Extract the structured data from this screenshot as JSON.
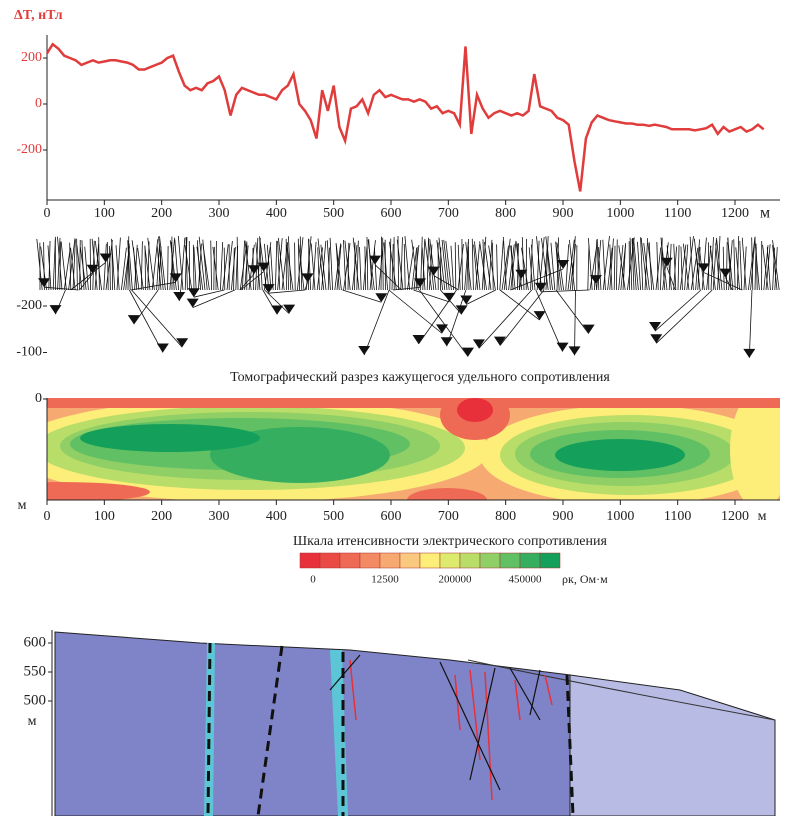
{
  "chart_data": [
    {
      "type": "line",
      "title": "ΔT, нТл",
      "x_unit": "м",
      "x": [
        0,
        10,
        20,
        30,
        40,
        50,
        60,
        70,
        80,
        90,
        100,
        110,
        120,
        130,
        140,
        150,
        160,
        170,
        180,
        190,
        200,
        210,
        220,
        230,
        240,
        250,
        260,
        270,
        280,
        290,
        300,
        310,
        320,
        330,
        340,
        350,
        360,
        370,
        380,
        390,
        400,
        410,
        420,
        430,
        440,
        450,
        460,
        470,
        480,
        490,
        500,
        510,
        520,
        530,
        540,
        550,
        560,
        570,
        580,
        590,
        600,
        610,
        620,
        630,
        640,
        650,
        660,
        670,
        680,
        690,
        700,
        710,
        720,
        730,
        740,
        750,
        760,
        770,
        780,
        790,
        800,
        810,
        820,
        830,
        840,
        850,
        860,
        870,
        880,
        890,
        900,
        910,
        920,
        930,
        940,
        950,
        960,
        970,
        980,
        990,
        1000,
        1010,
        1020,
        1030,
        1040,
        1050,
        1060,
        1070,
        1080,
        1090,
        1100,
        1110,
        1120,
        1130,
        1140,
        1150,
        1160,
        1170,
        1180,
        1190,
        1200,
        1210,
        1220,
        1230,
        1240,
        1250
      ],
      "series": [
        {
          "color": "#e03c3c",
          "values": [
            220,
            260,
            240,
            210,
            200,
            190,
            170,
            180,
            190,
            180,
            185,
            190,
            190,
            185,
            180,
            170,
            150,
            150,
            160,
            170,
            180,
            200,
            210,
            140,
            80,
            60,
            70,
            60,
            90,
            100,
            120,
            60,
            -50,
            40,
            70,
            60,
            50,
            40,
            40,
            30,
            20,
            60,
            80,
            130,
            0,
            -30,
            -70,
            -150,
            60,
            -30,
            80,
            -100,
            -160,
            -20,
            -10,
            20,
            -40,
            40,
            60,
            30,
            40,
            30,
            20,
            20,
            10,
            20,
            10,
            -20,
            -10,
            -40,
            -30,
            -40,
            -90,
            250,
            -130,
            40,
            -20,
            -60,
            -40,
            -30,
            -40,
            -50,
            -40,
            -50,
            -30,
            130,
            -10,
            -20,
            -30,
            -60,
            -70,
            -90,
            -250,
            -380,
            -150,
            -80,
            -50,
            -60,
            -70,
            -75,
            -80,
            -85,
            -85,
            -90,
            -90,
            -95,
            -90,
            -95,
            -100,
            -110,
            -110,
            -110,
            -110,
            -115,
            -110,
            -105,
            -90,
            -130,
            -100,
            -120,
            -110,
            -100,
            -120,
            -110,
            -90,
            -110
          ]
        }
      ],
      "xlim": [
        0,
        1260
      ],
      "ylim": [
        -390,
        290
      ],
      "xticks": [
        0,
        100,
        200,
        300,
        400,
        500,
        600,
        700,
        800,
        900,
        1000,
        1100,
        1200
      ],
      "yticks": [
        200,
        0,
        -200
      ]
    },
    {
      "type": "contour",
      "title": "Томографический разрез кажущегося удельного сопротивления",
      "x_unit": "м",
      "y_unit": "м",
      "xlim": [
        0,
        1260
      ],
      "ylim": [
        -215,
        0
      ],
      "xticks": [
        0,
        100,
        200,
        300,
        400,
        500,
        600,
        700,
        800,
        900,
        1000,
        1100,
        1200
      ],
      "yticks": [
        0,
        -100,
        -200
      ]
    },
    {
      "type": "colorbar",
      "title": "Шкала итенсивности электрического сопротивления",
      "unit": "ρк, Ом·м",
      "ticks": [
        0,
        12500,
        200000,
        450000
      ],
      "colors": [
        "#e8303a",
        "#ea4a44",
        "#ee6a55",
        "#f28a64",
        "#f6aa72",
        "#fac980",
        "#fdee7a",
        "#dcea6e",
        "#b8dd68",
        "#8fcf66",
        "#62c064",
        "#35ae60",
        "#14a05a"
      ]
    },
    {
      "type": "section",
      "y_unit": "м",
      "ylim": [
        368,
        640
      ],
      "yticks": [
        600,
        550,
        500
      ]
    }
  ]
}
